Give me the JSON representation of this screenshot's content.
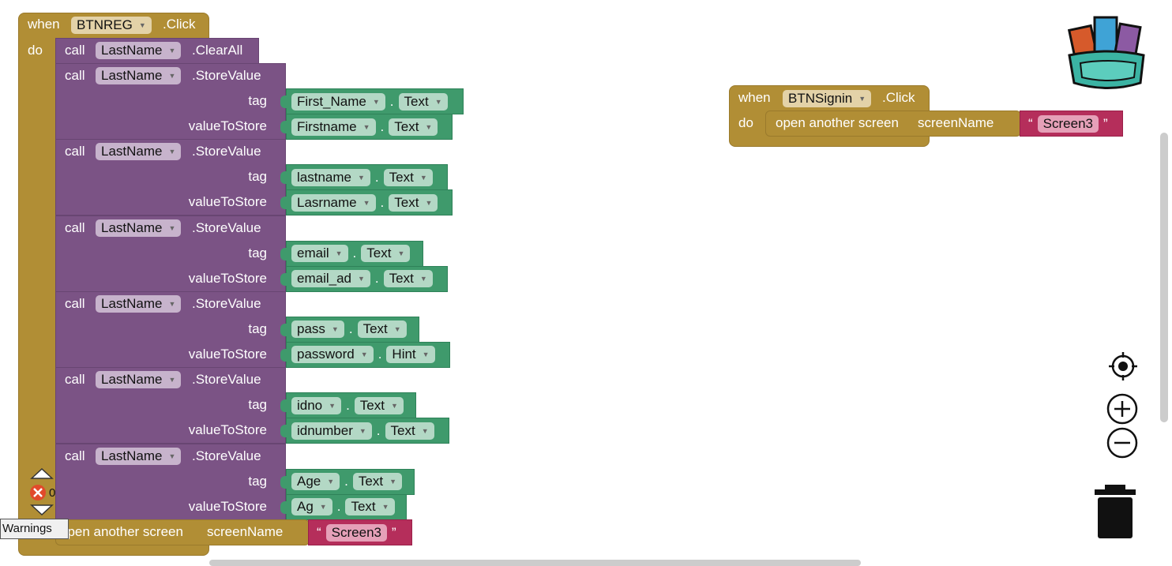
{
  "event1": {
    "when": "when",
    "component": "BTNREG",
    "event": ".Click",
    "do": "do"
  },
  "clear": {
    "call": "call",
    "component": "LastName",
    "method": ".ClearAll"
  },
  "store_blocks": [
    {
      "call": "call",
      "component": "LastName",
      "method": ".StoreValue",
      "tag_label": "tag",
      "value_label": "valueToStore",
      "tag_comp": "First_Name",
      "tag_prop": "Text",
      "val_comp": "Firstname",
      "val_prop": "Text"
    },
    {
      "call": "call",
      "component": "LastName",
      "method": ".StoreValue",
      "tag_label": "tag",
      "value_label": "valueToStore",
      "tag_comp": "lastname",
      "tag_prop": "Text",
      "val_comp": "Lasrname",
      "val_prop": "Text"
    },
    {
      "call": "call",
      "component": "LastName",
      "method": ".StoreValue",
      "tag_label": "tag",
      "value_label": "valueToStore",
      "tag_comp": "email",
      "tag_prop": "Text",
      "val_comp": "email_ad",
      "val_prop": "Text"
    },
    {
      "call": "call",
      "component": "LastName",
      "method": ".StoreValue",
      "tag_label": "tag",
      "value_label": "valueToStore",
      "tag_comp": "pass",
      "tag_prop": "Text",
      "val_comp": "password",
      "val_prop": "Hint"
    },
    {
      "call": "call",
      "component": "LastName",
      "method": ".StoreValue",
      "tag_label": "tag",
      "value_label": "valueToStore",
      "tag_comp": "idno",
      "tag_prop": "Text",
      "val_comp": "idnumber",
      "val_prop": "Text"
    },
    {
      "call": "call",
      "component": "LastName",
      "method": ".StoreValue",
      "tag_label": "tag",
      "value_label": "valueToStore",
      "tag_comp": "Age",
      "tag_prop": "Text",
      "val_comp": "Ag",
      "val_prop": "Text"
    }
  ],
  "open1": {
    "label": "open another screen",
    "param": "screenName",
    "value": "Screen3",
    "open_quote": "“",
    "close_quote": "”"
  },
  "event2": {
    "when": "when",
    "component": "BTNSignin",
    "event": ".Click",
    "do": "do"
  },
  "open2": {
    "label": "open another screen",
    "param": "screenName",
    "value": "Screen3",
    "open_quote": "“",
    "close_quote": "”"
  },
  "warnings": {
    "error_count": "0",
    "tooltip": "Warnings"
  },
  "icons": {
    "backpack": "backpack-icon",
    "recenter": "target-icon",
    "zoom_in": "plus-icon",
    "zoom_out": "minus-icon",
    "trash": "trash-icon"
  },
  "colors": {
    "event": "#b18e35",
    "procedure": "#7b5385",
    "component": "#3f9a6c",
    "text": "#b52e5b"
  }
}
